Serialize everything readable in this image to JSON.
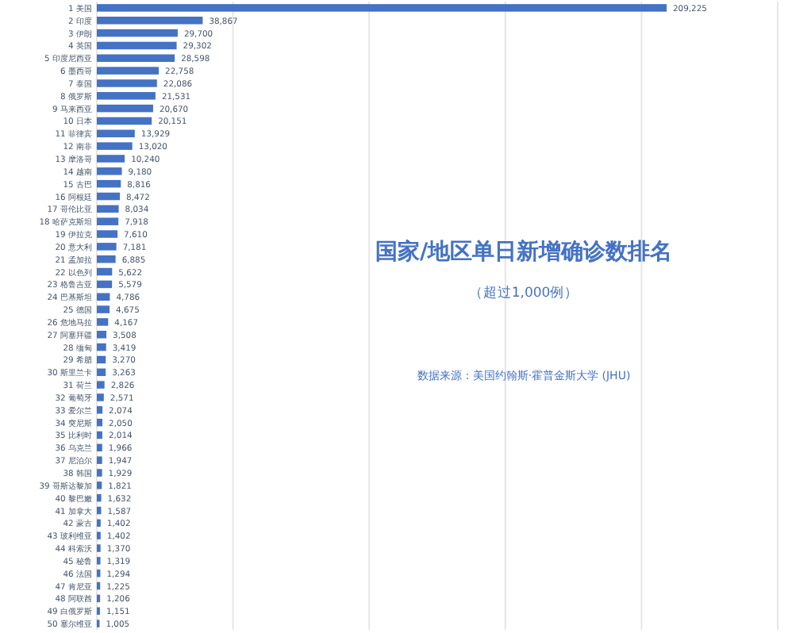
{
  "chart_data": {
    "type": "bar",
    "orientation": "horizontal",
    "title": "国家/地区单日新增确诊数排名",
    "subtitle": "（超过1,000例）",
    "annotations": [
      "数据来源：美国约翰斯·霍普金斯大学 (JHU)"
    ],
    "categories": [
      "1 美国",
      "2 印度",
      "3 伊朗",
      "4 英国",
      "5 印度尼西亚",
      "6 墨西哥",
      "7 泰国",
      "8 俄罗斯",
      "9 马来西亚",
      "10 日本",
      "11 菲律宾",
      "12 南非",
      "13 摩洛哥",
      "14 越南",
      "15 古巴",
      "16 阿根廷",
      "17 哥伦比亚",
      "18 哈萨克斯坦",
      "19 伊拉克",
      "20 意大利",
      "21 孟加拉",
      "22 以色列",
      "23 格鲁吉亚",
      "24 巴基斯坦",
      "25 德国",
      "26 危地马拉",
      "27 阿塞拜疆",
      "28 缅甸",
      "29 希腊",
      "30 斯里兰卡",
      "31 荷兰",
      "32 葡萄牙",
      "33 爱尔兰",
      "34 突尼斯",
      "35 比利时",
      "36 乌克兰",
      "37 尼泊尔",
      "38 韩国",
      "39 哥斯达黎加",
      "40 黎巴嫩",
      "41 加拿大",
      "42 蒙古",
      "43 玻利维亚",
      "44 科索沃",
      "45 秘鲁",
      "46 法国",
      "47 肯尼亚",
      "48 阿联酋",
      "49 白俄罗斯",
      "50 塞尔维亚"
    ],
    "values": [
      209225,
      38867,
      29700,
      29302,
      28598,
      22758,
      22086,
      21531,
      20670,
      20151,
      13929,
      13020,
      10240,
      9180,
      8816,
      8472,
      8034,
      7918,
      7610,
      7181,
      6885,
      5622,
      5579,
      4786,
      4675,
      4167,
      3508,
      3419,
      3270,
      3263,
      2826,
      2571,
      2074,
      2050,
      2014,
      1966,
      1947,
      1929,
      1821,
      1632,
      1587,
      1402,
      1402,
      1370,
      1319,
      1294,
      1225,
      1206,
      1151,
      1005
    ],
    "value_labels": [
      "209,225",
      "38,867",
      "29,700",
      "29,302",
      "28,598",
      "22,758",
      "22,086",
      "21,531",
      "20,670",
      "20,151",
      "13,929",
      "13,020",
      "10,240",
      "9,180",
      "8,816",
      "8,472",
      "8,034",
      "7,918",
      "7,610",
      "7,181",
      "6,885",
      "5,622",
      "5,579",
      "4,786",
      "4,675",
      "4,167",
      "3,508",
      "3,419",
      "3,270",
      "3,263",
      "2,826",
      "2,571",
      "2,074",
      "2,050",
      "2,014",
      "1,966",
      "1,947",
      "1,929",
      "1,821",
      "1,632",
      "1,587",
      "1,402",
      "1,402",
      "1,370",
      "1,319",
      "1,294",
      "1,225",
      "1,206",
      "1,151",
      "1,005"
    ],
    "color": "#4472c4",
    "grid": "x",
    "tick_labels": "y"
  }
}
